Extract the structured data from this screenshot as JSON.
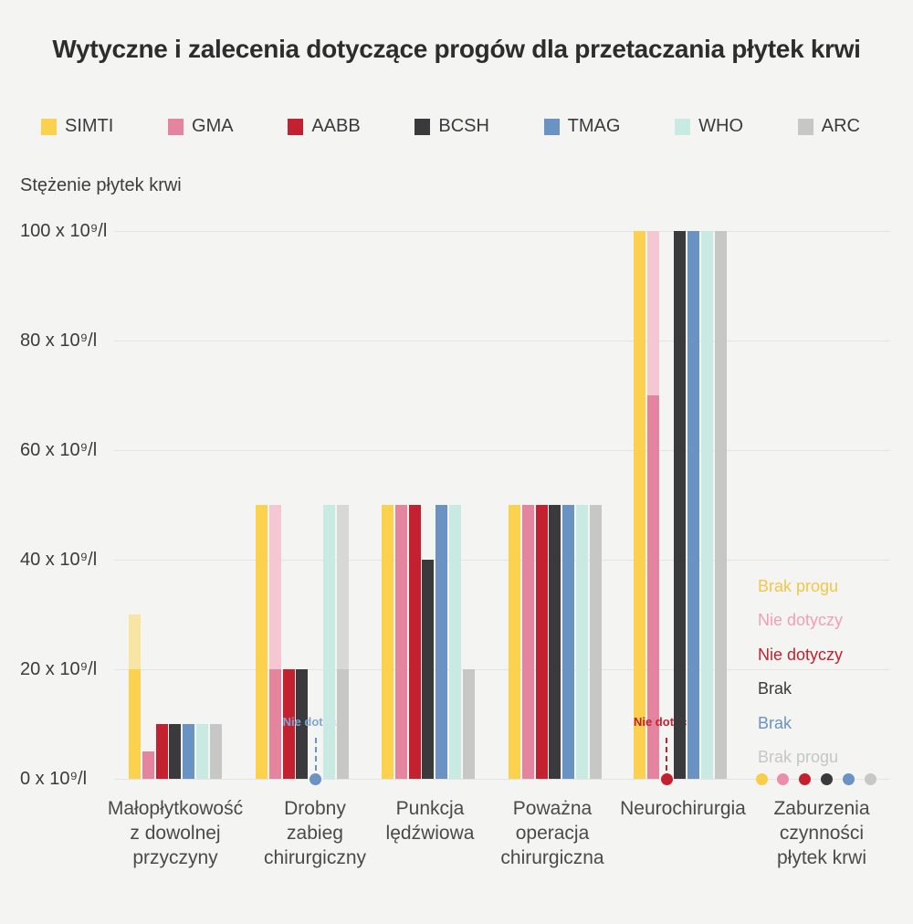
{
  "title": "Wytyczne i zalecenia dotyczące progów dla przetaczania płytek krwi",
  "y_axis": {
    "label": "Stężenie płytek krwi",
    "tick_suffix": " x 10⁹/l",
    "ticks": [
      0,
      20,
      40,
      60,
      80,
      100
    ]
  },
  "legend": [
    {
      "label": "SIMTI",
      "color": "#fbd14d"
    },
    {
      "label": "GMA",
      "color": "#e4849f"
    },
    {
      "label": "AABB",
      "color": "#c32030"
    },
    {
      "label": "BCSH",
      "color": "#3a3a3c"
    },
    {
      "label": "TMAG",
      "color": "#6a93c3"
    },
    {
      "label": "WHO",
      "color": "#c9eae3"
    },
    {
      "label": "ARC",
      "color": "#c7c7c5"
    }
  ],
  "chart_data": {
    "type": "bar",
    "title": "Wytyczne i zalecenia dotyczące progów dla przetaczania płytek krwi",
    "ylabel": "Stężenie płytek krwi",
    "unit": "x 10⁹/l",
    "ylim": [
      0,
      100
    ],
    "grid": true,
    "legend_position": "top",
    "series": [
      "SIMTI",
      "GMA",
      "AABB",
      "BCSH",
      "TMAG",
      "WHO",
      "ARC"
    ],
    "colors": {
      "SIMTI": {
        "solid": "#fbd14d",
        "light": "#f9e5a3"
      },
      "GMA": {
        "solid": "#e4849f",
        "light": "#f4c7d3"
      },
      "AABB": {
        "solid": "#c32030",
        "light": "#c32030"
      },
      "BCSH": {
        "solid": "#3a3a3c",
        "light": "#3a3a3c"
      },
      "TMAG": {
        "solid": "#6a93c3",
        "light": "#6a93c3"
      },
      "WHO": {
        "solid": "#c9eae3",
        "light": "#c9eae3"
      },
      "ARC": {
        "solid": "#c7c7c5",
        "light": "#d8d8d6"
      }
    },
    "groups": [
      {
        "category": "Małopłytkowość z dowolnej przyczyny",
        "label_lines": [
          "Małopłytkowość",
          "z dowolnej",
          "przyczyny"
        ],
        "bars": [
          {
            "org": "SIMTI",
            "segments": [
              [
                0,
                20,
                "solid"
              ],
              [
                20,
                30,
                "light"
              ]
            ]
          },
          {
            "org": "GMA",
            "segments": [
              [
                0,
                5,
                "solid"
              ]
            ]
          },
          {
            "org": "AABB",
            "segments": [
              [
                0,
                10,
                "solid"
              ]
            ]
          },
          {
            "org": "BCSH",
            "segments": [
              [
                0,
                10,
                "solid"
              ]
            ]
          },
          {
            "org": "TMAG",
            "segments": [
              [
                0,
                10,
                "solid"
              ]
            ]
          },
          {
            "org": "WHO",
            "segments": [
              [
                0,
                10,
                "solid"
              ]
            ]
          },
          {
            "org": "ARC",
            "segments": [
              [
                0,
                10,
                "solid"
              ]
            ]
          }
        ]
      },
      {
        "category": "Drobny zabieg chirurgiczny",
        "label_lines": [
          "Drobny",
          "zabieg",
          "chirurgiczny"
        ],
        "bars": [
          {
            "org": "SIMTI",
            "segments": [
              [
                0,
                50,
                "solid"
              ]
            ]
          },
          {
            "org": "GMA",
            "segments": [
              [
                0,
                20,
                "solid"
              ],
              [
                20,
                50,
                "light"
              ]
            ]
          },
          {
            "org": "AABB",
            "segments": [
              [
                0,
                20,
                "solid"
              ]
            ]
          },
          {
            "org": "BCSH",
            "segments": [
              [
                0,
                20,
                "solid"
              ]
            ]
          },
          {
            "org": "TMAG",
            "na": {
              "label": "Nie dotyczy",
              "text_color": "#7fa6cf",
              "dot_color": "#6a93c3"
            }
          },
          {
            "org": "WHO",
            "segments": [
              [
                0,
                50,
                "solid"
              ]
            ]
          },
          {
            "org": "ARC",
            "segments": [
              [
                0,
                20,
                "solid"
              ],
              [
                20,
                50,
                "light"
              ]
            ]
          }
        ]
      },
      {
        "category": "Punkcja lędźwiowa",
        "label_lines": [
          "Punkcja",
          "lędźwiowa"
        ],
        "bars": [
          {
            "org": "SIMTI",
            "segments": [
              [
                0,
                50,
                "solid"
              ]
            ]
          },
          {
            "org": "GMA",
            "segments": [
              [
                0,
                50,
                "solid"
              ]
            ]
          },
          {
            "org": "AABB",
            "segments": [
              [
                0,
                50,
                "solid"
              ]
            ]
          },
          {
            "org": "BCSH",
            "segments": [
              [
                0,
                40,
                "solid"
              ]
            ]
          },
          {
            "org": "TMAG",
            "segments": [
              [
                0,
                50,
                "solid"
              ]
            ]
          },
          {
            "org": "WHO",
            "segments": [
              [
                0,
                50,
                "solid"
              ]
            ]
          },
          {
            "org": "ARC",
            "segments": [
              [
                0,
                20,
                "solid"
              ]
            ]
          }
        ]
      },
      {
        "category": "Poważna operacja chirurgiczna",
        "label_lines": [
          "Poważna",
          "operacja",
          "chirurgiczna"
        ],
        "bars": [
          {
            "org": "SIMTI",
            "segments": [
              [
                0,
                50,
                "solid"
              ]
            ]
          },
          {
            "org": "GMA",
            "segments": [
              [
                0,
                50,
                "solid"
              ]
            ]
          },
          {
            "org": "AABB",
            "segments": [
              [
                0,
                50,
                "solid"
              ]
            ]
          },
          {
            "org": "BCSH",
            "segments": [
              [
                0,
                50,
                "solid"
              ]
            ]
          },
          {
            "org": "TMAG",
            "segments": [
              [
                0,
                50,
                "solid"
              ]
            ]
          },
          {
            "org": "WHO",
            "segments": [
              [
                0,
                50,
                "solid"
              ]
            ]
          },
          {
            "org": "ARC",
            "segments": [
              [
                0,
                50,
                "solid"
              ]
            ]
          }
        ]
      },
      {
        "category": "Neurochirurgia",
        "label_lines": [
          "Neurochirurgia"
        ],
        "bars": [
          {
            "org": "SIMTI",
            "segments": [
              [
                0,
                100,
                "solid"
              ]
            ]
          },
          {
            "org": "GMA",
            "segments": [
              [
                0,
                70,
                "solid"
              ],
              [
                70,
                100,
                "light"
              ]
            ]
          },
          {
            "org": "AABB",
            "na": {
              "label": "Nie dotyczy",
              "text_color": "#c32030",
              "dot_color": "#c32030"
            }
          },
          {
            "org": "BCSH",
            "segments": [
              [
                0,
                100,
                "solid"
              ]
            ]
          },
          {
            "org": "TMAG",
            "segments": [
              [
                0,
                100,
                "solid"
              ]
            ]
          },
          {
            "org": "WHO",
            "segments": [
              [
                0,
                100,
                "solid"
              ]
            ]
          },
          {
            "org": "ARC",
            "segments": [
              [
                0,
                100,
                "solid"
              ]
            ]
          }
        ]
      },
      {
        "category": "Zaburzenia czynności płytek krwi",
        "label_lines": [
          "Zaburzenia",
          "czynności",
          "płytek krwi"
        ],
        "dot_row": [
          {
            "org": "SIMTI",
            "note": "Brak progu",
            "dot_color": "#f8cd4a",
            "note_color": "#f3c64a"
          },
          {
            "org": "GMA",
            "note": "Nie dotyczy",
            "dot_color": "#e98fa9",
            "note_color": "#ee9fb9"
          },
          {
            "org": "AABB",
            "note": "Nie dotyczy",
            "dot_color": "#c32030",
            "note_color": "#c32030"
          },
          {
            "org": "BCSH",
            "note": "Brak",
            "dot_color": "#3a3a3c",
            "note_color": "#3a3a3c"
          },
          {
            "org": "TMAG",
            "note": "Brak",
            "dot_color": "#6a93c3",
            "note_color": "#6a93c3"
          },
          {
            "org": "ARC",
            "note": "Brak progu",
            "dot_color": "#c7c7c5",
            "note_color": "#c6c6c4"
          }
        ]
      }
    ]
  }
}
